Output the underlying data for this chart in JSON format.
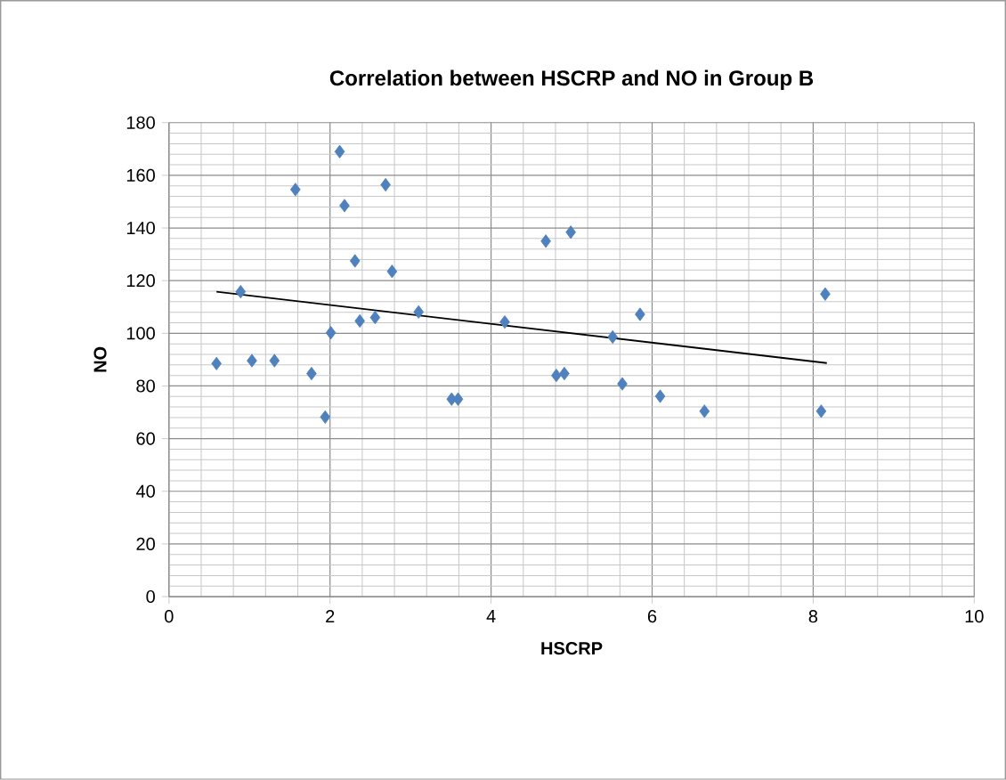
{
  "chart_data": {
    "type": "scatter",
    "title": "Correlation between HSCRP and NO in Group B",
    "xlabel": "HSCRP",
    "ylabel": "NO",
    "xlim": [
      0,
      10
    ],
    "xticks": [
      0,
      2,
      4,
      6,
      8,
      10
    ],
    "ylim": [
      0,
      180
    ],
    "yticks": [
      0,
      20,
      40,
      60,
      80,
      100,
      120,
      140,
      160,
      180
    ],
    "grid": true,
    "marker": "diamond",
    "series": [
      {
        "color": "#4f81bd",
        "x": [
          0.59,
          0.89,
          1.03,
          1.31,
          1.57,
          1.77,
          1.94,
          2.01,
          2.12,
          2.18,
          2.31,
          2.37,
          2.56,
          2.69,
          2.77,
          3.1,
          3.51,
          3.59,
          4.17,
          4.68,
          4.99,
          4.81,
          4.91,
          5.51,
          5.63,
          5.85,
          6.1,
          6.65,
          8.1,
          8.15
        ],
        "values": [
          88.5,
          115.8,
          89.6,
          89.6,
          154.6,
          84.7,
          68.2,
          100.2,
          169,
          148.5,
          127.5,
          104.7,
          106,
          156.4,
          123.5,
          108.1,
          75,
          75,
          104.3,
          135,
          138.4,
          84,
          84.7,
          98.6,
          80.8,
          107.2,
          76.1,
          70.4,
          70.4,
          114.9
        ]
      },
      {
        "type": "line",
        "color": "#000000",
        "x": [
          0.59,
          8.17
        ],
        "values": [
          115.8,
          88.7
        ],
        "marker": "none",
        "line_style": "solid"
      }
    ]
  }
}
